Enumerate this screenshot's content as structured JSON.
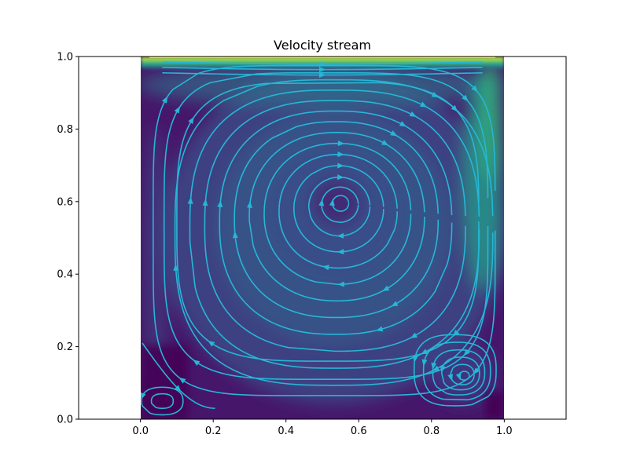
{
  "chart_data": {
    "type": "heatmap",
    "title": "Velocity stream",
    "subtype": "streamplot over filled velocity-magnitude contour",
    "xlabel": "",
    "ylabel": "",
    "xlim": [
      -0.17,
      1.17
    ],
    "ylim": [
      0.0,
      1.0
    ],
    "domain_x": [
      0.0,
      1.0
    ],
    "domain_y": [
      0.0,
      1.0
    ],
    "x_ticks": [
      {
        "value": 0.0,
        "label": "0.0"
      },
      {
        "value": 0.2,
        "label": "0.2"
      },
      {
        "value": 0.4,
        "label": "0.4"
      },
      {
        "value": 0.6,
        "label": "0.6"
      },
      {
        "value": 0.8,
        "label": "0.8"
      },
      {
        "value": 1.0,
        "label": "1.0"
      }
    ],
    "y_ticks": [
      {
        "value": 0.0,
        "label": "0.0"
      },
      {
        "value": 0.2,
        "label": "0.2"
      },
      {
        "value": 0.4,
        "label": "0.4"
      },
      {
        "value": 0.6,
        "label": "0.6"
      },
      {
        "value": 0.8,
        "label": "0.8"
      },
      {
        "value": 1.0,
        "label": "1.0"
      }
    ],
    "colormap": "viridis",
    "stream_color": "#27b6d6",
    "grid": false,
    "legend": "none",
    "vortices": [
      {
        "name": "primary",
        "center": [
          0.55,
          0.595
        ],
        "rotation": "clockwise"
      },
      {
        "name": "bottom-right",
        "center": [
          0.89,
          0.12
        ],
        "rotation": "counter-clockwise"
      },
      {
        "name": "bottom-left",
        "center": [
          0.05,
          0.05
        ],
        "rotation": "counter-clockwise"
      }
    ],
    "magnitude_field": [
      {
        "region": "lid boundary layer",
        "y_range": [
          0.96,
          1.0
        ],
        "level": 1.0
      },
      {
        "region": "right wall jet",
        "x_range": [
          0.88,
          1.0
        ],
        "y_range": [
          0.5,
          0.95
        ],
        "level": 0.45
      },
      {
        "region": "outer ring of primary vortex",
        "level": 0.3
      },
      {
        "region": "vortex core",
        "level": 0.05
      },
      {
        "region": "bottom corners",
        "level": 0.02
      }
    ]
  },
  "colors": {
    "viridis": [
      "#440154",
      "#482878",
      "#3e4989",
      "#31688e",
      "#26828e",
      "#1f9e89",
      "#35b779",
      "#6ece58",
      "#b5de2b",
      "#fde725"
    ],
    "stream": "#27b6d6",
    "axes": "#000000",
    "background": "#ffffff"
  }
}
